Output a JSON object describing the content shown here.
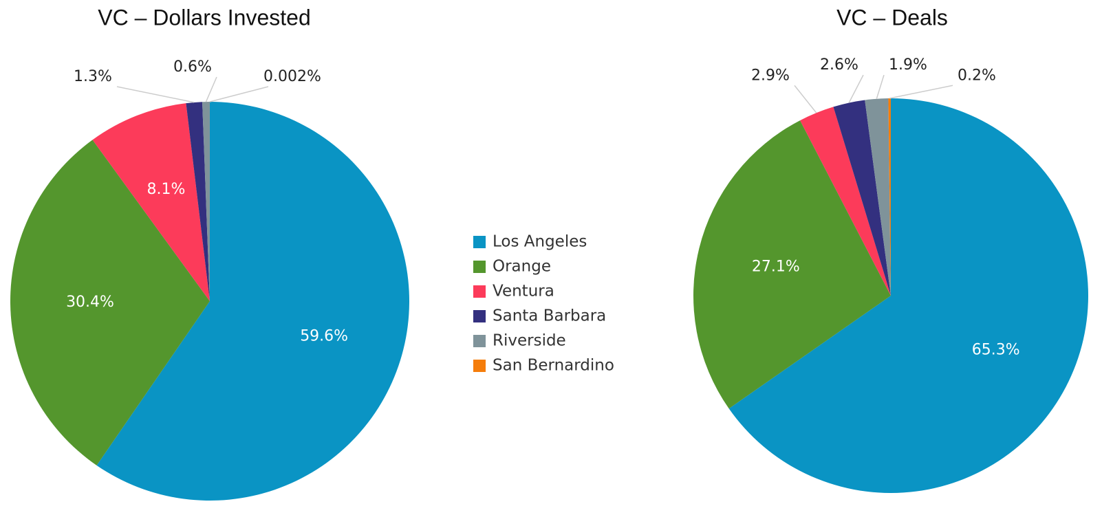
{
  "chart_data": [
    {
      "type": "pie",
      "title": "VC – Dollars Invested",
      "categories": [
        "Los Angeles",
        "Orange",
        "Ventura",
        "Santa Barbara",
        "Riverside",
        "San Bernardino"
      ],
      "values": [
        59.6,
        30.4,
        8.1,
        1.3,
        0.6,
        0.002
      ],
      "value_labels": [
        "59.6%",
        "30.4%",
        "8.1%",
        "1.3%",
        "0.6%",
        "0.002%"
      ],
      "colors": [
        "#0a94c4",
        "#54962d",
        "#fc3b5a",
        "#33307f",
        "#7f939a",
        "#f57d0b"
      ],
      "legend": true
    },
    {
      "type": "pie",
      "title": "VC – Deals",
      "categories": [
        "Los Angeles",
        "Orange",
        "Ventura",
        "Santa Barbara",
        "Riverside",
        "San Bernardino"
      ],
      "values": [
        65.3,
        27.1,
        2.9,
        2.6,
        1.9,
        0.2
      ],
      "value_labels": [
        "65.3%",
        "27.1%",
        "2.9%",
        "2.6%",
        "1.9%",
        "0.2%"
      ],
      "colors": [
        "#0a94c4",
        "#54962d",
        "#fc3b5a",
        "#33307f",
        "#7f939a",
        "#f57d0b"
      ],
      "legend": false
    }
  ]
}
